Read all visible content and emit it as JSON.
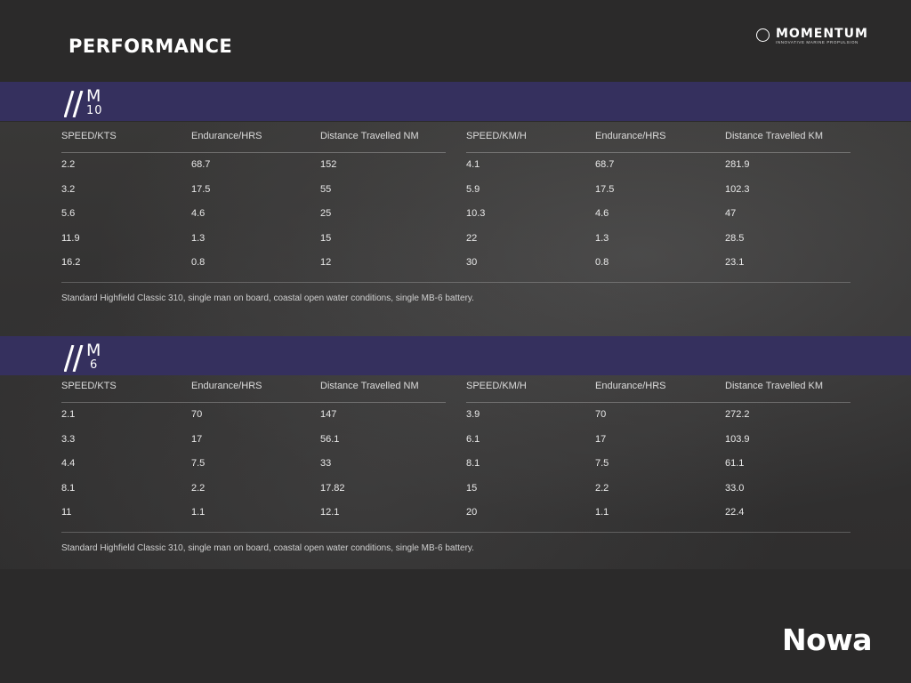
{
  "page": {
    "title": "PERFORMANCE",
    "brand": {
      "name": "MOMENTUM",
      "tagline": "INNOVATIVE MARINE PROPULSION",
      "icon": "momentum-logo-icon"
    },
    "footer_logo": "Nowa"
  },
  "columns": [
    "SPEED/KTS",
    "Endurance/HRS",
    "Distance Travelled NM",
    "SPEED/KM/H",
    "Endurance/HRS",
    "Distance Travelled KM"
  ],
  "sections": [
    {
      "model_letter": "M",
      "model_number": "10",
      "rows": [
        [
          "2.2",
          "68.7",
          "152",
          "4.1",
          "68.7",
          "281.9"
        ],
        [
          "3.2",
          "17.5",
          "55",
          "5.9",
          "17.5",
          "102.3"
        ],
        [
          "5.6",
          "4.6",
          "25",
          "10.3",
          "4.6",
          "47"
        ],
        [
          "11.9",
          "1.3",
          "15",
          "22",
          "1.3",
          "28.5"
        ],
        [
          "16.2",
          "0.8",
          "12",
          "30",
          "0.8",
          "23.1"
        ]
      ],
      "footnote": "Standard Highfield Classic 310, single man on board, coastal open water conditions, single MB-6 battery."
    },
    {
      "model_letter": "M",
      "model_number": "6",
      "rows": [
        [
          "2.1",
          "70",
          "147",
          "3.9",
          "70",
          "272.2"
        ],
        [
          "3.3",
          "17",
          "56.1",
          "6.1",
          "17",
          "103.9"
        ],
        [
          "4.4",
          "7.5",
          "33",
          "8.1",
          "7.5",
          "61.1"
        ],
        [
          "8.1",
          "2.2",
          "17.82",
          "15",
          "2.2",
          "33.0"
        ],
        [
          "11",
          "1.1",
          "12.1",
          "20",
          "1.1",
          "22.4"
        ]
      ],
      "footnote": "Standard Highfield Classic 310, single man on board, coastal open water conditions, single MB-6 battery."
    }
  ],
  "colors": {
    "background": "#2b2a2a",
    "band": "#35305e",
    "text": "#e9e9e9"
  }
}
